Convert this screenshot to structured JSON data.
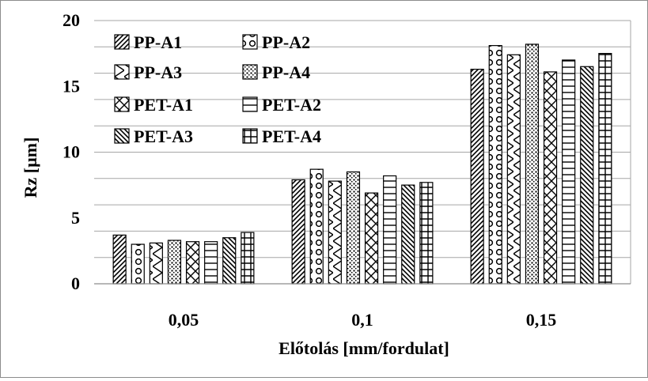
{
  "chart_data": {
    "type": "bar",
    "title": "",
    "xlabel": "Előtolás [mm/fordulat]",
    "ylabel": "Rz [µm]",
    "ylim": [
      0,
      20
    ],
    "yticks": [
      0,
      5,
      10,
      15,
      20
    ],
    "grid": true,
    "legend_position": "top-left",
    "categories": [
      "0,05",
      "0,1",
      "0,15"
    ],
    "series": [
      {
        "name": "PP-A1",
        "pattern": "diagonal-hatch",
        "values": [
          3.7,
          7.9,
          16.3
        ]
      },
      {
        "name": "PP-A2",
        "pattern": "circles",
        "values": [
          3.0,
          8.7,
          18.1
        ]
      },
      {
        "name": "PP-A3",
        "pattern": "chevron",
        "values": [
          3.1,
          7.8,
          17.4
        ]
      },
      {
        "name": "PP-A4",
        "pattern": "dots",
        "values": [
          3.3,
          8.5,
          18.2
        ]
      },
      {
        "name": "PET-A1",
        "pattern": "diagonal-cross",
        "values": [
          3.2,
          6.9,
          16.1
        ]
      },
      {
        "name": "PET-A2",
        "pattern": "horizontal-lines",
        "values": [
          3.2,
          8.2,
          17.0
        ]
      },
      {
        "name": "PET-A3",
        "pattern": "back-diagonal-hatch",
        "values": [
          3.5,
          7.5,
          16.5
        ]
      },
      {
        "name": "PET-A4",
        "pattern": "grid",
        "values": [
          3.9,
          7.7,
          17.5
        ]
      }
    ]
  }
}
